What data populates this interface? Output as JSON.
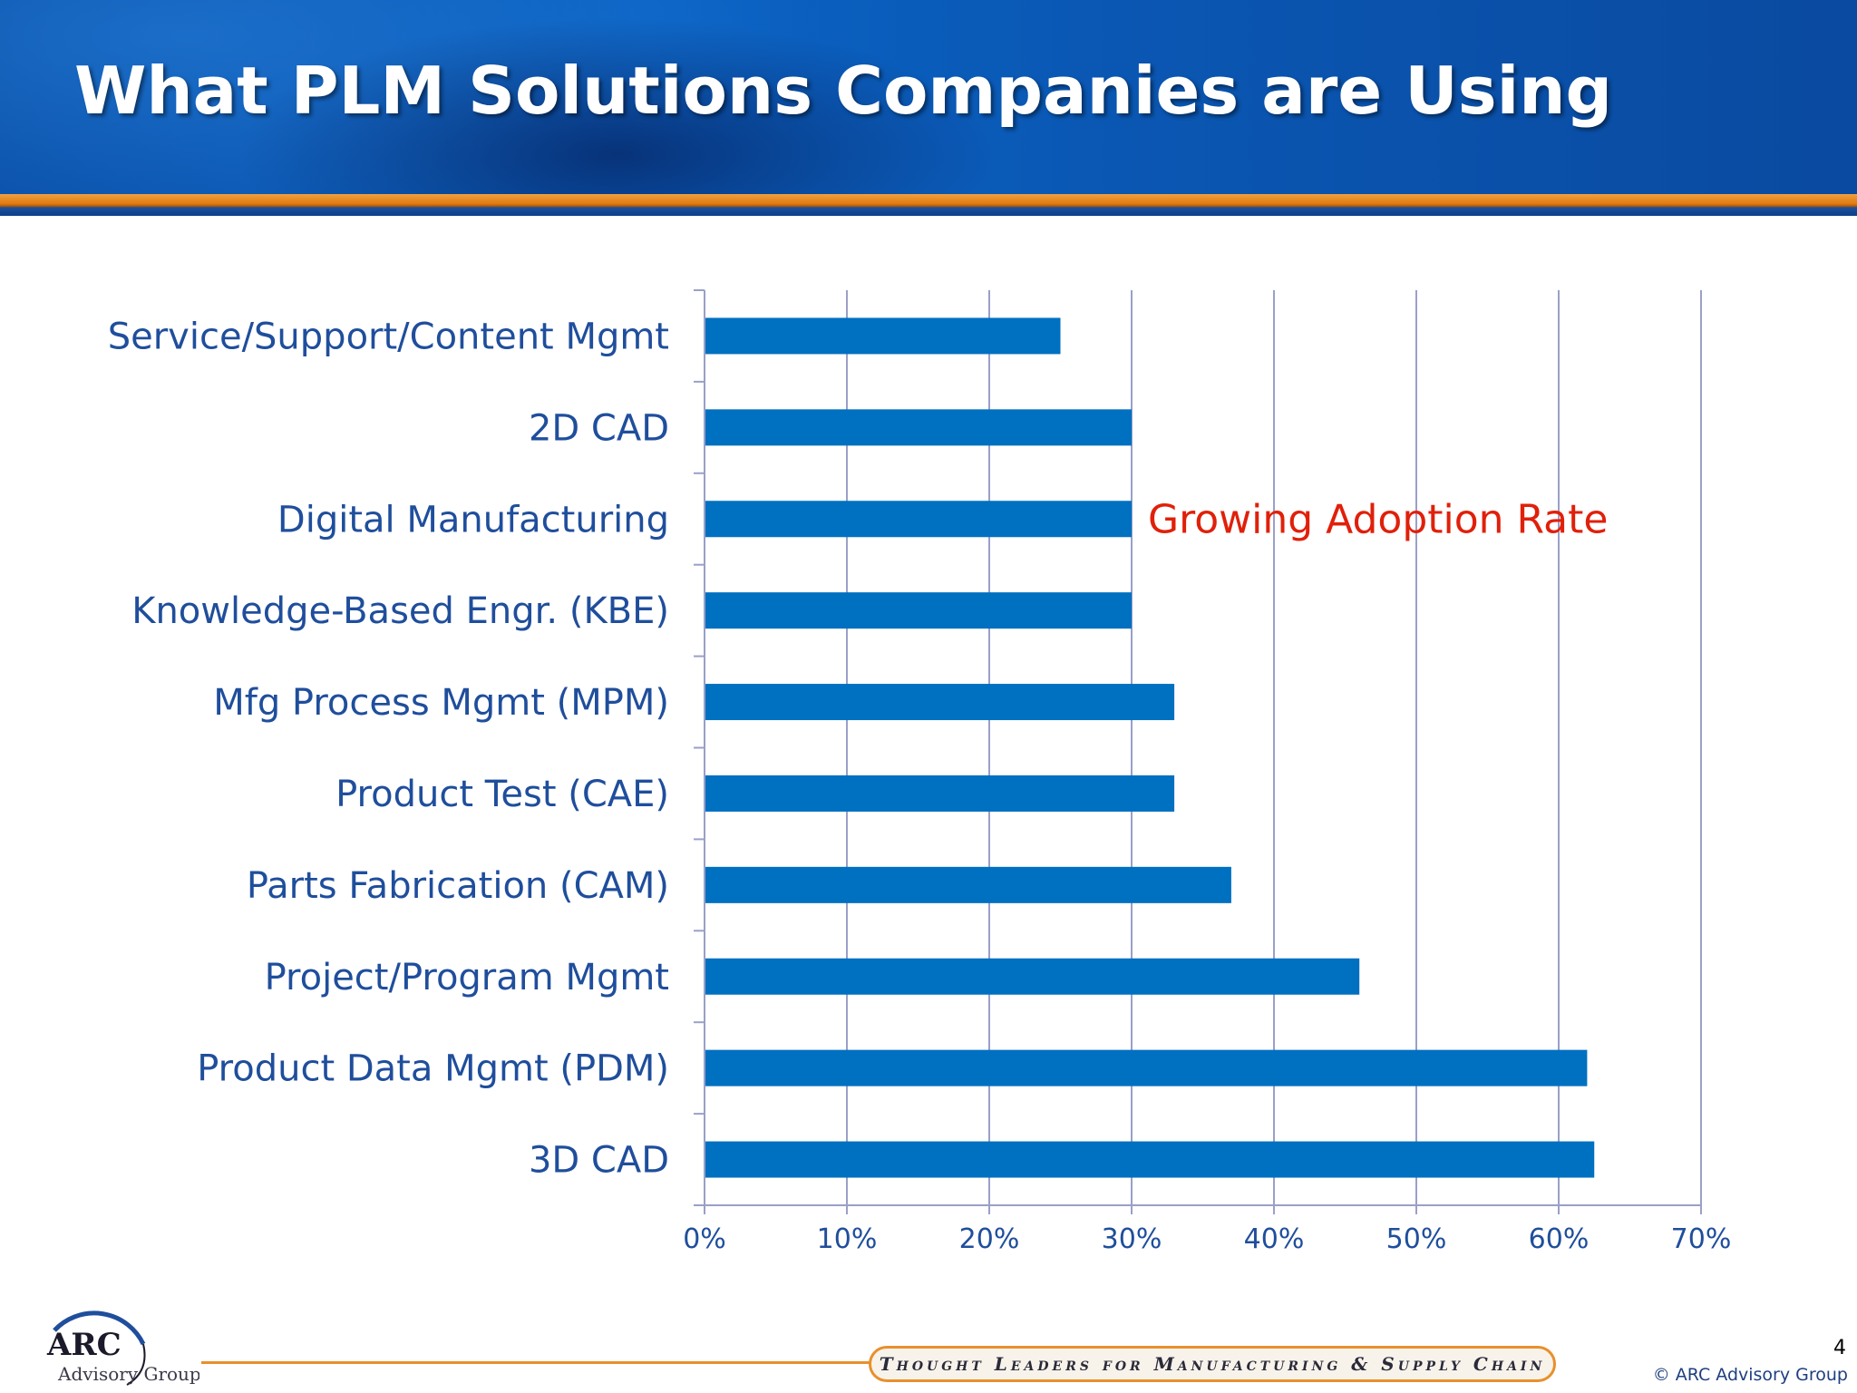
{
  "slide": {
    "title": "What PLM Solutions Companies are Using",
    "page_number": "4",
    "copyright": "© ARC Advisory Group",
    "tagline": "Thought Leaders for Manufacturing & Supply Chain",
    "logo": {
      "name": "ARC",
      "subtitle": "Advisory Group"
    }
  },
  "colors": {
    "bar": "#0070c0",
    "label": "#1f4e9c",
    "annotation": "#e0200a",
    "gridline": "#9aa0c8"
  },
  "chart_data": {
    "type": "bar",
    "orientation": "horizontal",
    "categories": [
      "Service/Support/Content Mgmt",
      "2D CAD",
      "Digital Manufacturing",
      "Knowledge-Based Engr. (KBE)",
      "Mfg Process Mgmt (MPM)",
      "Product Test (CAE)",
      "Parts Fabrication (CAM)",
      "Project/Program Mgmt",
      "Product Data Mgmt (PDM)",
      "3D CAD"
    ],
    "values": [
      25,
      30,
      30,
      30,
      33,
      33,
      37,
      46,
      62,
      62.5
    ],
    "unit": "%",
    "xlim": [
      0,
      70
    ],
    "xticks": [
      "0%",
      "10%",
      "20%",
      "30%",
      "40%",
      "50%",
      "60%",
      "70%"
    ],
    "grid": true,
    "annotation": "Growing Adoption Rate"
  }
}
